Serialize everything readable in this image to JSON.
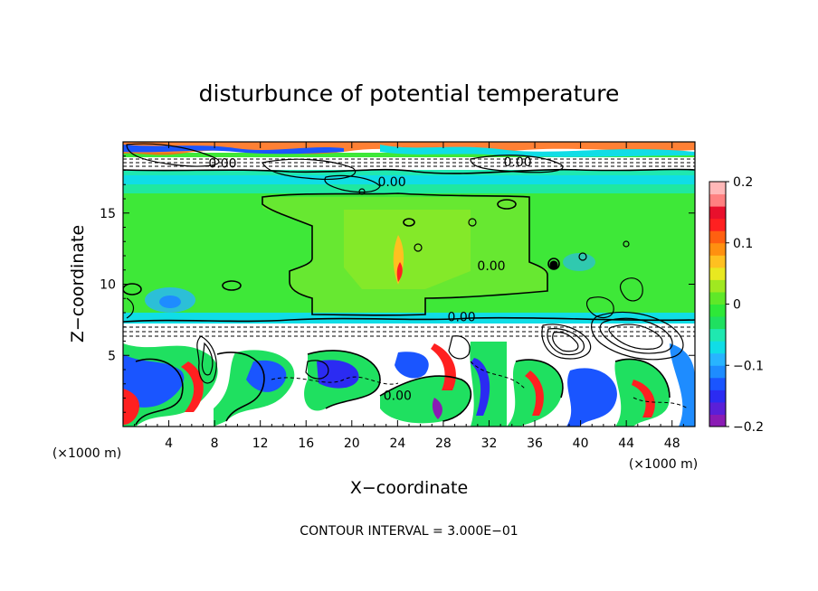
{
  "chart_data": {
    "type": "heatmap",
    "title": "disturbunce of potential temperature",
    "xlabel": "X−coordinate",
    "ylabel": "Z−coordinate",
    "x_unit": "(×1000 m)",
    "y_unit": "(×1000 m)",
    "xlim": [
      0,
      50
    ],
    "ylim": [
      0,
      20
    ],
    "x_ticks": [
      4,
      8,
      12,
      16,
      20,
      24,
      28,
      32,
      36,
      40,
      44,
      48
    ],
    "y_ticks": [
      5,
      10,
      15
    ],
    "footer": "CONTOUR INTERVAL = 3.000E−01",
    "contour_interval": 0.3,
    "contour_labels": [
      {
        "text": "0.00",
        "x": 8.7,
        "z": 18.5
      },
      {
        "text": "0.00",
        "x": 34.5,
        "z": 18.6
      },
      {
        "text": "0.00",
        "x": 23.5,
        "z": 17.2
      },
      {
        "text": "0.00",
        "x": 32.2,
        "z": 11.3
      },
      {
        "text": "0.00",
        "x": 29.6,
        "z": 7.7
      },
      {
        "text": "0.00",
        "x": 24.0,
        "z": 2.2
      }
    ],
    "colorbar": {
      "min": -0.2,
      "max": 0.2,
      "tick_labels": [
        "0.2",
        "0.1",
        "0",
        "−0.1",
        "−0.2"
      ],
      "tick_values": [
        0.2,
        0.1,
        0,
        -0.1,
        -0.2
      ],
      "colors": [
        "#8a1bb4",
        "#5a1fd8",
        "#2b2bf2",
        "#1a55ff",
        "#1e8cff",
        "#28b4ff",
        "#10dde6",
        "#1fe8b0",
        "#1fe060",
        "#2ee838",
        "#5fe828",
        "#a0e820",
        "#e8e820",
        "#ffc020",
        "#ff9010",
        "#ff6010",
        "#ff2020",
        "#e8102c",
        "#ff8080",
        "#ffb8b8"
      ]
    }
  }
}
